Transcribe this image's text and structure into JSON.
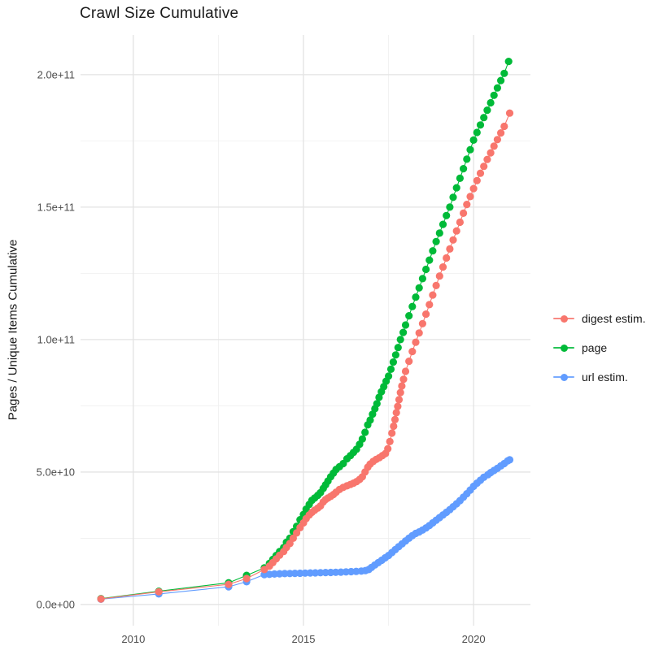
{
  "page": {
    "background_color": "#FFFFFF"
  },
  "chart": {
    "title": "Crawl Size Cumulative",
    "y_axis_title": "Pages / Unique Items Cumulative",
    "legend": {
      "position": "right",
      "items": [
        {
          "label": "digest estim.",
          "color": "#F8766D"
        },
        {
          "label": "page",
          "color": "#00BA38"
        },
        {
          "label": "url estim.",
          "color": "#619CFF"
        }
      ]
    },
    "colors": {
      "tick_label": "#4D4D4D",
      "grid_major": "#E3E3E3",
      "grid_minor": "#EFEFEF",
      "text": "#1A1A1A"
    }
  },
  "chart_data": {
    "type": "scatter",
    "style": "points-with-line",
    "title": "Crawl Size Cumulative",
    "xlabel": "",
    "ylabel": "Pages / Unique Items Cumulative",
    "grid": true,
    "legend_position": "right",
    "x_ticks": [
      2010,
      2015,
      2020
    ],
    "x_tick_labels": [
      "2010",
      "2015",
      "2020"
    ],
    "x_minor_ticks": [
      2012.5,
      2017.5
    ],
    "y_ticks": [
      0,
      50000000000.0,
      100000000000.0,
      150000000000.0,
      200000000000.0
    ],
    "y_tick_labels": [
      "0.0e+00",
      "5.0e+10",
      "1.0e+11",
      "1.5e+11",
      "2.0e+11"
    ],
    "y_minor_ticks": [
      25000000000.0,
      75000000000.0,
      125000000000.0,
      175000000000.0
    ],
    "xlim": [
      2008.45,
      2021.67
    ],
    "ylim": [
      -8000000000.0,
      215000000000.0
    ],
    "point_value_unit": 1000000000.0,
    "point_value_note": "points are [year, cumulative count in billions (1e9)]; values estimated from gridlines",
    "series": [
      {
        "name": "digest estim.",
        "color": "#F8766D",
        "points": [
          [
            2009.05,
            2.1
          ],
          [
            2010.75,
            4.8
          ],
          [
            2012.8,
            7.6
          ],
          [
            2013.33,
            9.8
          ],
          [
            2013.85,
            13.2
          ],
          [
            2014.0,
            14.5
          ],
          [
            2014.1,
            15.8
          ],
          [
            2014.2,
            17.2
          ],
          [
            2014.3,
            18.6
          ],
          [
            2014.42,
            20.0
          ],
          [
            2014.5,
            21.5
          ],
          [
            2014.6,
            23.0
          ],
          [
            2014.7,
            25.0
          ],
          [
            2014.8,
            27.0
          ],
          [
            2014.9,
            29.0
          ],
          [
            2015.0,
            30.8
          ],
          [
            2015.08,
            32.4
          ],
          [
            2015.17,
            33.8
          ],
          [
            2015.25,
            34.8
          ],
          [
            2015.33,
            35.6
          ],
          [
            2015.42,
            36.4
          ],
          [
            2015.5,
            37.2
          ],
          [
            2015.58,
            38.7
          ],
          [
            2015.65,
            39.6
          ],
          [
            2015.72,
            40.2
          ],
          [
            2015.8,
            40.8
          ],
          [
            2015.88,
            41.5
          ],
          [
            2015.96,
            42.4
          ],
          [
            2016.06,
            43.4
          ],
          [
            2016.17,
            44.2
          ],
          [
            2016.28,
            44.8
          ],
          [
            2016.38,
            45.3
          ],
          [
            2016.47,
            45.8
          ],
          [
            2016.56,
            46.4
          ],
          [
            2016.65,
            47.2
          ],
          [
            2016.73,
            48.2
          ],
          [
            2016.81,
            50.0
          ],
          [
            2016.89,
            51.8
          ],
          [
            2016.96,
            53.0
          ],
          [
            2017.05,
            54.0
          ],
          [
            2017.14,
            54.8
          ],
          [
            2017.23,
            55.4
          ],
          [
            2017.32,
            56.2
          ],
          [
            2017.41,
            57.0
          ],
          [
            2017.48,
            58.8
          ],
          [
            2017.54,
            61.5
          ],
          [
            2017.6,
            64.7
          ],
          [
            2017.65,
            67.3
          ],
          [
            2017.69,
            69.8
          ],
          [
            2017.73,
            72.4
          ],
          [
            2017.77,
            74.8
          ],
          [
            2017.81,
            77.3
          ],
          [
            2017.85,
            80.0
          ],
          [
            2017.89,
            82.5
          ],
          [
            2017.94,
            85.0
          ],
          [
            2018.0,
            88.0
          ],
          [
            2018.1,
            91.8
          ],
          [
            2018.2,
            95.5
          ],
          [
            2018.3,
            99.0
          ],
          [
            2018.4,
            102.5
          ],
          [
            2018.5,
            106.0
          ],
          [
            2018.6,
            109.6
          ],
          [
            2018.7,
            113.2
          ],
          [
            2018.8,
            116.8
          ],
          [
            2018.9,
            120.4
          ],
          [
            2019.0,
            124.0
          ],
          [
            2019.1,
            127.4
          ],
          [
            2019.2,
            130.8
          ],
          [
            2019.3,
            134.2
          ],
          [
            2019.4,
            137.6
          ],
          [
            2019.5,
            141.0
          ],
          [
            2019.6,
            144.3
          ],
          [
            2019.7,
            147.7
          ],
          [
            2019.8,
            151.0
          ],
          [
            2019.9,
            154.0
          ],
          [
            2020.0,
            157.0
          ],
          [
            2020.1,
            160.0
          ],
          [
            2020.2,
            162.8
          ],
          [
            2020.3,
            165.4
          ],
          [
            2020.4,
            168.0
          ],
          [
            2020.5,
            170.5
          ],
          [
            2020.6,
            173.0
          ],
          [
            2020.7,
            175.5
          ],
          [
            2020.8,
            178.0
          ],
          [
            2020.9,
            180.5
          ],
          [
            2021.06,
            185.5
          ]
        ]
      },
      {
        "name": "page",
        "color": "#00BA38",
        "points": [
          [
            2009.05,
            2.2
          ],
          [
            2010.75,
            5.0
          ],
          [
            2012.8,
            8.2
          ],
          [
            2013.33,
            11.0
          ],
          [
            2013.85,
            13.8
          ],
          [
            2014.0,
            15.5
          ],
          [
            2014.1,
            17.0
          ],
          [
            2014.2,
            18.5
          ],
          [
            2014.3,
            20.0
          ],
          [
            2014.42,
            21.5
          ],
          [
            2014.5,
            23.5
          ],
          [
            2014.6,
            25.0
          ],
          [
            2014.7,
            27.5
          ],
          [
            2014.8,
            29.5
          ],
          [
            2014.9,
            32.0
          ],
          [
            2015.0,
            34.0
          ],
          [
            2015.08,
            36.0
          ],
          [
            2015.17,
            37.8
          ],
          [
            2015.25,
            39.3
          ],
          [
            2015.33,
            40.2
          ],
          [
            2015.42,
            41.2
          ],
          [
            2015.5,
            42.2
          ],
          [
            2015.58,
            43.8
          ],
          [
            2015.65,
            45.2
          ],
          [
            2015.72,
            46.6
          ],
          [
            2015.8,
            48.2
          ],
          [
            2015.88,
            49.6
          ],
          [
            2015.96,
            51.0
          ],
          [
            2016.06,
            52.0
          ],
          [
            2016.17,
            53.2
          ],
          [
            2016.28,
            55.0
          ],
          [
            2016.38,
            56.2
          ],
          [
            2016.47,
            57.4
          ],
          [
            2016.56,
            58.6
          ],
          [
            2016.65,
            60.5
          ],
          [
            2016.73,
            62.5
          ],
          [
            2016.81,
            65.0
          ],
          [
            2016.89,
            67.8
          ],
          [
            2016.96,
            69.6
          ],
          [
            2017.03,
            71.8
          ],
          [
            2017.1,
            73.9
          ],
          [
            2017.16,
            75.8
          ],
          [
            2017.22,
            78.2
          ],
          [
            2017.29,
            80.3
          ],
          [
            2017.36,
            82.2
          ],
          [
            2017.43,
            84.3
          ],
          [
            2017.5,
            86.2
          ],
          [
            2017.57,
            88.8
          ],
          [
            2017.64,
            91.5
          ],
          [
            2017.71,
            94.2
          ],
          [
            2017.78,
            97.0
          ],
          [
            2017.85,
            100.0
          ],
          [
            2017.93,
            102.7
          ],
          [
            2018.0,
            105.5
          ],
          [
            2018.1,
            109.0
          ],
          [
            2018.2,
            112.5
          ],
          [
            2018.3,
            116.0
          ],
          [
            2018.4,
            119.5
          ],
          [
            2018.5,
            123.0
          ],
          [
            2018.6,
            126.5
          ],
          [
            2018.7,
            130.0
          ],
          [
            2018.8,
            133.5
          ],
          [
            2018.9,
            137.0
          ],
          [
            2019.0,
            140.2
          ],
          [
            2019.1,
            143.5
          ],
          [
            2019.2,
            146.8
          ],
          [
            2019.3,
            150.0
          ],
          [
            2019.4,
            153.7
          ],
          [
            2019.5,
            157.3
          ],
          [
            2019.6,
            160.9
          ],
          [
            2019.7,
            164.5
          ],
          [
            2019.8,
            168.1
          ],
          [
            2019.9,
            171.7
          ],
          [
            2020.0,
            175.3
          ],
          [
            2020.1,
            178.2
          ],
          [
            2020.2,
            181.0
          ],
          [
            2020.3,
            183.8
          ],
          [
            2020.4,
            186.6
          ],
          [
            2020.5,
            189.4
          ],
          [
            2020.6,
            192.2
          ],
          [
            2020.7,
            195.0
          ],
          [
            2020.8,
            197.8
          ],
          [
            2020.9,
            200.5
          ],
          [
            2021.03,
            205.0
          ]
        ]
      },
      {
        "name": "url estim.",
        "color": "#619CFF",
        "points": [
          [
            2009.05,
            2.0
          ],
          [
            2010.75,
            4.0
          ],
          [
            2012.8,
            6.7
          ],
          [
            2013.33,
            8.6
          ],
          [
            2013.85,
            11.3
          ],
          [
            2014.0,
            11.4
          ],
          [
            2014.15,
            11.5
          ],
          [
            2014.3,
            11.6
          ],
          [
            2014.45,
            11.65
          ],
          [
            2014.6,
            11.7
          ],
          [
            2014.75,
            11.75
          ],
          [
            2014.9,
            11.8
          ],
          [
            2015.05,
            11.85
          ],
          [
            2015.2,
            11.9
          ],
          [
            2015.35,
            11.95
          ],
          [
            2015.5,
            12.0
          ],
          [
            2015.65,
            12.05
          ],
          [
            2015.8,
            12.1
          ],
          [
            2015.95,
            12.15
          ],
          [
            2016.1,
            12.2
          ],
          [
            2016.25,
            12.3
          ],
          [
            2016.4,
            12.4
          ],
          [
            2016.55,
            12.5
          ],
          [
            2016.7,
            12.6
          ],
          [
            2016.82,
            12.8
          ],
          [
            2016.92,
            13.2
          ],
          [
            2017.0,
            14.0
          ],
          [
            2017.1,
            14.9
          ],
          [
            2017.2,
            15.8
          ],
          [
            2017.3,
            16.7
          ],
          [
            2017.4,
            17.6
          ],
          [
            2017.5,
            18.5
          ],
          [
            2017.6,
            19.6
          ],
          [
            2017.7,
            20.7
          ],
          [
            2017.8,
            21.8
          ],
          [
            2017.9,
            22.9
          ],
          [
            2018.0,
            24.0
          ],
          [
            2018.1,
            25.0
          ],
          [
            2018.2,
            26.0
          ],
          [
            2018.3,
            26.8
          ],
          [
            2018.4,
            27.4
          ],
          [
            2018.5,
            28.1
          ],
          [
            2018.6,
            28.9
          ],
          [
            2018.7,
            29.8
          ],
          [
            2018.8,
            30.8
          ],
          [
            2018.9,
            31.8
          ],
          [
            2019.0,
            32.8
          ],
          [
            2019.1,
            33.8
          ],
          [
            2019.2,
            34.8
          ],
          [
            2019.3,
            35.8
          ],
          [
            2019.4,
            36.9
          ],
          [
            2019.5,
            38.0
          ],
          [
            2019.6,
            39.2
          ],
          [
            2019.7,
            40.5
          ],
          [
            2019.8,
            41.8
          ],
          [
            2019.9,
            43.2
          ],
          [
            2020.0,
            44.6
          ],
          [
            2020.1,
            45.8
          ],
          [
            2020.2,
            46.9
          ],
          [
            2020.3,
            48.0
          ],
          [
            2020.42,
            49.0
          ],
          [
            2020.5,
            49.8
          ],
          [
            2020.6,
            50.6
          ],
          [
            2020.7,
            51.4
          ],
          [
            2020.8,
            52.3
          ],
          [
            2020.9,
            53.2
          ],
          [
            2021.0,
            54.2
          ],
          [
            2021.06,
            54.6
          ]
        ]
      }
    ]
  }
}
